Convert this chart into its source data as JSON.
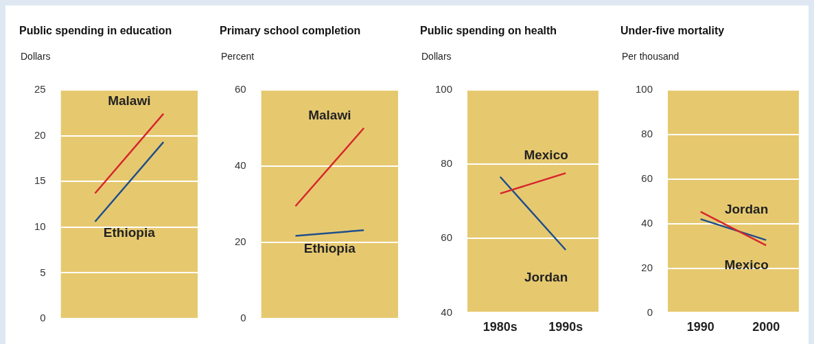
{
  "chart_data": [
    {
      "type": "line",
      "title": "Public spending in education",
      "ylabel": "Dollars",
      "categories": [
        null,
        null
      ],
      "ylim": [
        0,
        25
      ],
      "yticks": [
        0,
        5,
        10,
        15,
        20,
        25
      ],
      "grid": "y",
      "tick_labels": "y",
      "marker": "none",
      "series": [
        {
          "name": "Malawi",
          "color": "#d7262c",
          "values": [
            13.7,
            22.4
          ]
        },
        {
          "name": "Ethiopia",
          "color": "#1f4e8c",
          "values": [
            10.6,
            19.3
          ]
        }
      ]
    },
    {
      "type": "line",
      "title": "Primary school completion",
      "ylabel": "Percent",
      "categories": [
        null,
        null
      ],
      "ylim": [
        0,
        60
      ],
      "yticks": [
        0,
        20,
        40,
        60
      ],
      "grid": "y",
      "tick_labels": "y",
      "marker": "none",
      "series": [
        {
          "name": "Malawi",
          "color": "#d7262c",
          "values": [
            29.5,
            50
          ]
        },
        {
          "name": "Ethiopia",
          "color": "#1f4e8c",
          "values": [
            21.7,
            23.2
          ]
        }
      ]
    },
    {
      "type": "line",
      "title": "Public spending on health",
      "ylabel": "Dollars",
      "categories": [
        "1980s",
        "1990s"
      ],
      "ylim": [
        40,
        100
      ],
      "yticks": [
        40,
        60,
        80,
        100
      ],
      "grid": "y",
      "marker": "none",
      "series": [
        {
          "name": "Mexico",
          "color": "#d7262c",
          "values": [
            72.1,
            77.6
          ]
        },
        {
          "name": "Jordan",
          "color": "#1f4e8c",
          "values": [
            76.6,
            56.9
          ]
        }
      ]
    },
    {
      "type": "line",
      "title": "Under-five mortality",
      "ylabel": "Per thousand",
      "categories": [
        "1990",
        "2000"
      ],
      "ylim": [
        0,
        100
      ],
      "yticks": [
        0,
        20,
        40,
        60,
        80,
        100
      ],
      "grid": "y",
      "marker": "none",
      "series": [
        {
          "name": "Mexico",
          "color": "#d7262c",
          "values": [
            45.3,
            30.2
          ]
        },
        {
          "name": "Jordan",
          "color": "#1f4e8c",
          "values": [
            42,
            32.6
          ]
        }
      ]
    }
  ]
}
